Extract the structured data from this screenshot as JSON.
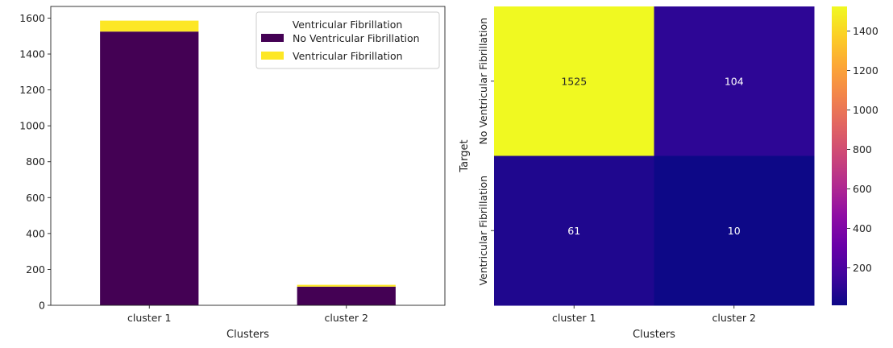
{
  "chart_data": [
    {
      "type": "bar",
      "stacked": true,
      "categories": [
        "cluster 1",
        "cluster 2"
      ],
      "series": [
        {
          "name": "No Ventricular Fibrillation",
          "values": [
            1525,
            104
          ],
          "color": "#440154"
        },
        {
          "name": "Ventricular Fibrillation",
          "values": [
            61,
            10
          ],
          "color": "#fde725"
        }
      ],
      "xlabel": "Clusters",
      "ylabel": "",
      "ylim": [
        0,
        1665
      ],
      "yticks": [
        0,
        200,
        400,
        600,
        800,
        1000,
        1200,
        1400,
        1600
      ],
      "legend": {
        "title": "Ventricular Fibrillation",
        "position": "top-right"
      },
      "grid": false
    },
    {
      "type": "heatmap",
      "x_categories": [
        "cluster 1",
        "cluster 2"
      ],
      "y_categories": [
        "No Ventricular Fibrillation",
        "Ventricular Fibrillation"
      ],
      "values": [
        [
          1525,
          104
        ],
        [
          61,
          10
        ]
      ],
      "xlabel": "Clusters",
      "ylabel": "Target",
      "colormap": "plasma",
      "colorbar": {
        "range": [
          10,
          1525
        ],
        "ticks": [
          200,
          400,
          600,
          800,
          1000,
          1200,
          1400
        ]
      },
      "annotations": true
    }
  ]
}
